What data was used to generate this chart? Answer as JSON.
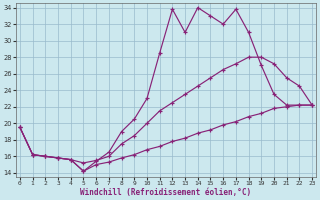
{
  "xlabel": "Windchill (Refroidissement éolien,°C)",
  "bg_color": "#cce8ee",
  "grid_color": "#99bbcc",
  "line_color": "#882277",
  "xlim": [
    -0.3,
    23.3
  ],
  "ylim": [
    13.5,
    34.5
  ],
  "xticks": [
    0,
    1,
    2,
    3,
    4,
    5,
    6,
    7,
    8,
    9,
    10,
    11,
    12,
    13,
    14,
    15,
    16,
    17,
    18,
    19,
    20,
    21,
    22,
    23
  ],
  "yticks": [
    14,
    16,
    18,
    20,
    22,
    24,
    26,
    28,
    30,
    32,
    34
  ],
  "line1": {
    "x": [
      0,
      1,
      2,
      3,
      4,
      5,
      6,
      7,
      8,
      9,
      10,
      11,
      12,
      13,
      14,
      15,
      16,
      17,
      18,
      19,
      20,
      21,
      22,
      23
    ],
    "y": [
      19.5,
      16.2,
      16.0,
      15.8,
      15.6,
      14.2,
      15.4,
      16.5,
      19.0,
      20.5,
      23.0,
      28.5,
      33.8,
      31.0,
      34.0,
      33.0,
      32.0,
      33.8,
      31.0,
      27.0,
      23.5,
      22.2,
      22.2,
      22.2
    ]
  },
  "line2": {
    "x": [
      0,
      1,
      2,
      3,
      4,
      5,
      6,
      7,
      8,
      9,
      10,
      11,
      12,
      13,
      14,
      15,
      16,
      17,
      18,
      19,
      20,
      21,
      22,
      23
    ],
    "y": [
      19.5,
      16.2,
      16.0,
      15.8,
      15.6,
      15.2,
      15.5,
      16.0,
      17.5,
      18.5,
      20.0,
      21.5,
      22.5,
      23.5,
      24.5,
      25.5,
      26.5,
      27.2,
      28.0,
      28.0,
      27.2,
      25.5,
      24.5,
      22.2
    ]
  },
  "line3": {
    "x": [
      0,
      1,
      2,
      3,
      4,
      5,
      6,
      7,
      8,
      9,
      10,
      11,
      12,
      13,
      14,
      15,
      16,
      17,
      18,
      19,
      20,
      21,
      22,
      23
    ],
    "y": [
      19.5,
      16.2,
      16.0,
      15.8,
      15.6,
      14.2,
      15.0,
      15.3,
      15.8,
      16.2,
      16.8,
      17.2,
      17.8,
      18.2,
      18.8,
      19.2,
      19.8,
      20.2,
      20.8,
      21.2,
      21.8,
      22.0,
      22.2,
      22.2
    ]
  }
}
